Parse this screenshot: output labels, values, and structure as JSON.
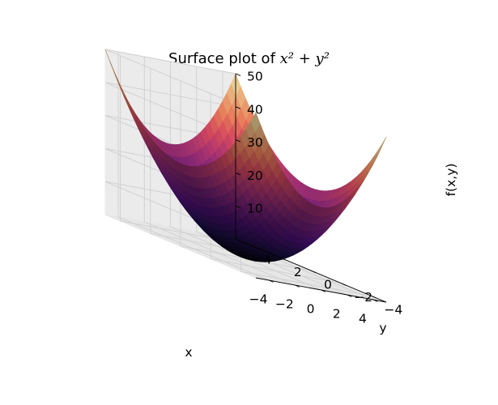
{
  "chart_data": {
    "type": "surface",
    "title": "Surface plot of x^2 + y^2",
    "title_prefix": "Surface plot of",
    "title_math": "x² + y²",
    "function": "f(x,y) = x^2 + y^2",
    "colormap": "magma",
    "xlabel": "x",
    "ylabel": "y",
    "zlabel": "f(x,y)",
    "x_range": [
      -5,
      5
    ],
    "y_range": [
      -5,
      5
    ],
    "z_range": [
      0,
      50
    ],
    "x_ticks": [
      -4,
      -2,
      0,
      2,
      4
    ],
    "y_ticks": [
      -4,
      -2,
      0,
      2,
      4
    ],
    "z_ticks": [
      10,
      20,
      30,
      40,
      50
    ],
    "grid_resolution": 30,
    "grid": true,
    "x_tick_labels": [
      "−4",
      "−2",
      "0",
      "2",
      "4"
    ],
    "y_tick_labels": [
      "−4",
      "−2",
      "0",
      "2",
      "4"
    ],
    "z_tick_labels": [
      "10",
      "20",
      "30",
      "40",
      "50"
    ]
  }
}
